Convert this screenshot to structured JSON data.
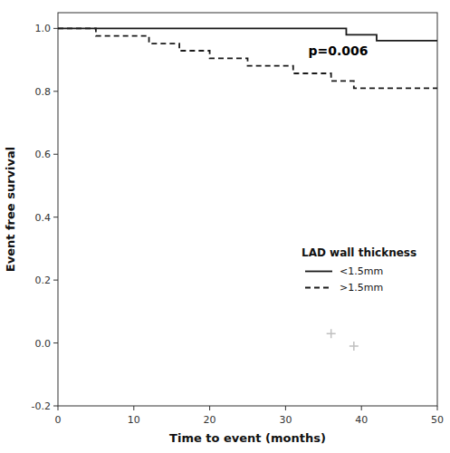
{
  "chart_data": {
    "type": "line",
    "xlabel": "Time to event (months)",
    "ylabel": "Event free survival",
    "xlim": [
      0,
      50
    ],
    "ylim": [
      -0.2,
      1.05
    ],
    "xticks": [
      0,
      10,
      20,
      30,
      40,
      50
    ],
    "yticks": [
      -0.2,
      {
        "value": 0.0,
        "label": "0.0"
      },
      0.2,
      0.4,
      0.6,
      0.8,
      {
        "value": 1.0,
        "label": "1.0"
      }
    ],
    "grid": false,
    "legend": "lower right",
    "legend_title": "LAD wall thickness",
    "annotations": [
      {
        "text": "p=0.006",
        "x": 33,
        "y": 0.915
      }
    ],
    "series": [
      {
        "name": "<1.5mm",
        "type": "step",
        "color": "#1a1a1a",
        "line_style": "solid",
        "x": [
          0,
          38,
          38,
          42,
          42,
          50
        ],
        "values": [
          1.0,
          1.0,
          0.98,
          0.98,
          0.961,
          0.961
        ]
      },
      {
        "name": ">1.5mm",
        "type": "step",
        "color": "#1a1a1a",
        "line_style": "dashed",
        "x": [
          0,
          5,
          5,
          12,
          12,
          16,
          16,
          20,
          20,
          25,
          25,
          31,
          31,
          33,
          33,
          36,
          36,
          39,
          39,
          41,
          41,
          50
        ],
        "values": [
          1.0,
          1.0,
          0.976,
          0.976,
          0.952,
          0.952,
          0.929,
          0.929,
          0.905,
          0.905,
          0.881,
          0.881,
          0.857,
          0.857,
          0.857,
          0.857,
          0.833,
          0.833,
          0.81,
          0.81,
          0.81,
          0.81
        ]
      },
      {
        "type": "scatter",
        "marker": "plus",
        "color": "#c0c0c0",
        "x": [
          36,
          39
        ],
        "values": [
          0.03,
          -0.01
        ]
      }
    ]
  }
}
